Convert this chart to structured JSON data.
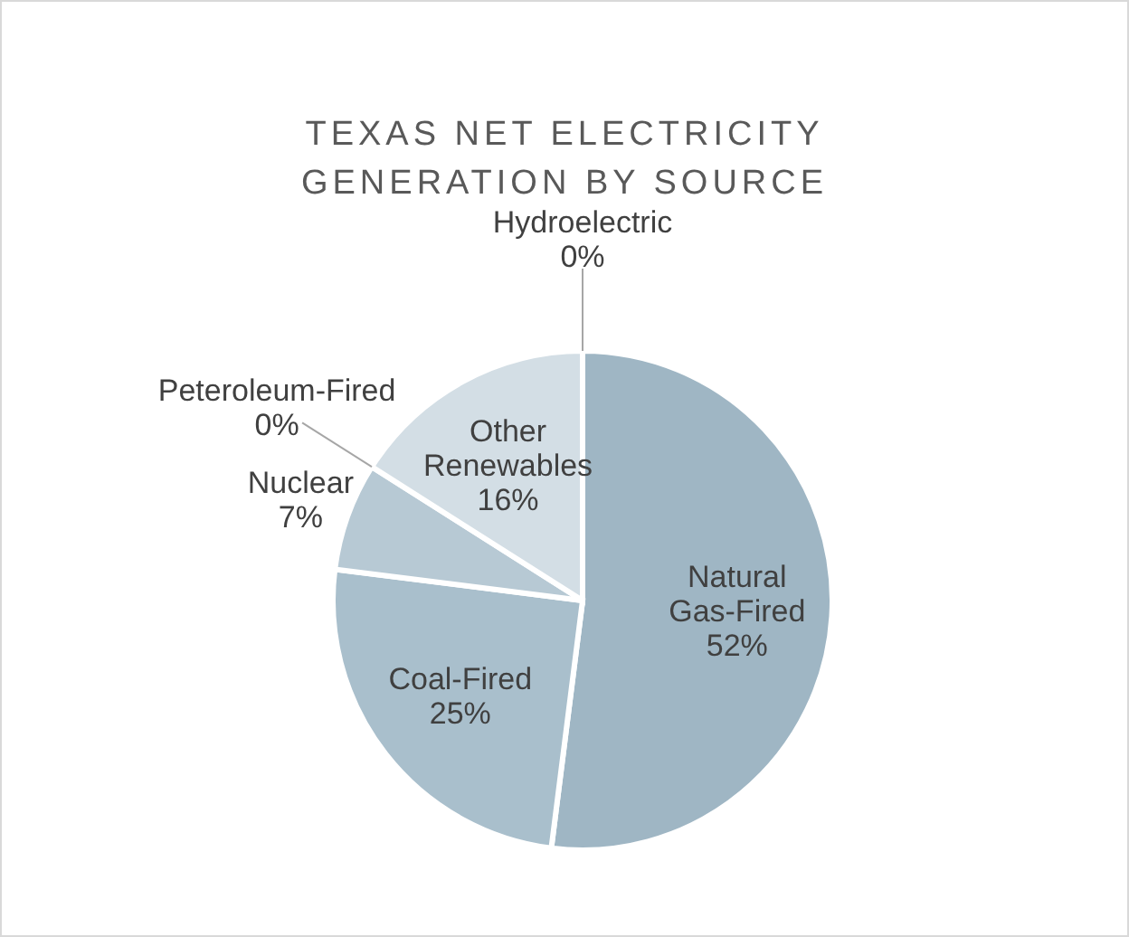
{
  "chart_data": {
    "type": "pie",
    "title": "TEXAS NET ELECTRICITY GENERATION BY SOURCE",
    "categories": [
      "Natural Gas-Fired",
      "Coal-Fired",
      "Nuclear",
      "Peteroleum-Fired",
      "Other Renewables",
      "Hydroelectric"
    ],
    "values": [
      52,
      25,
      7,
      0,
      16,
      0
    ],
    "value_labels": [
      "52%",
      "25%",
      "7%",
      "0%",
      "16%",
      "0%"
    ],
    "colors": [
      "#9fb6c4",
      "#a9bfcc",
      "#b7c9d4",
      "#b7c9d4",
      "#d3dee5",
      "#d3dee5"
    ]
  }
}
